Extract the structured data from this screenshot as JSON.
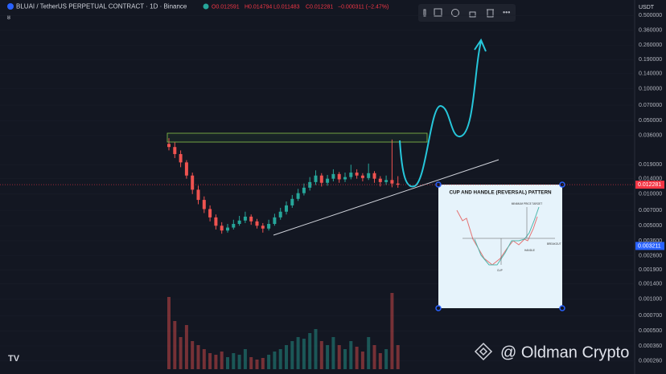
{
  "chart_data": {
    "type": "candlestick",
    "title": "BLUAI / TetherUS PERPETUAL CONTRACT · 1D · Binance",
    "ohlc_legend": [
      "O0.012591",
      "H0.014794",
      "L0.011483",
      "C0.012281",
      "−0.000311 (−2.47%)"
    ],
    "indicator_count": "8",
    "currency": "USDT",
    "log_scale": true,
    "ylim": [
      0.000224,
      0.7
    ],
    "yticks": [
      {
        "value": 0.5,
        "label": "0.500000"
      },
      {
        "value": 0.36,
        "label": "0.360000"
      },
      {
        "value": 0.26,
        "label": "0.260000"
      },
      {
        "value": 0.19,
        "label": "0.190000"
      },
      {
        "value": 0.14,
        "label": "0.140000"
      },
      {
        "value": 0.1,
        "label": "0.100000"
      },
      {
        "value": 0.07,
        "label": "0.070000"
      },
      {
        "value": 0.05,
        "label": "0.050000"
      },
      {
        "value": 0.036,
        "label": "0.036000"
      },
      {
        "value": 0.019,
        "label": "0.019000"
      },
      {
        "value": 0.014,
        "label": "0.014000"
      },
      {
        "value": 0.01,
        "label": "0.010000"
      },
      {
        "value": 0.007,
        "label": "0.007000"
      },
      {
        "value": 0.005,
        "label": "0.005000"
      },
      {
        "value": 0.0036,
        "label": "0.003600"
      },
      {
        "value": 0.0026,
        "label": "0.002600"
      },
      {
        "value": 0.0019,
        "label": "0.001900"
      },
      {
        "value": 0.0014,
        "label": "0.001400"
      },
      {
        "value": 0.001,
        "label": "0.001000"
      },
      {
        "value": 0.0007,
        "label": "0.000700"
      },
      {
        "value": 0.0005,
        "label": "0.000500"
      },
      {
        "value": 0.00036,
        "label": "0.000360"
      },
      {
        "value": 0.00026,
        "label": "0.000260"
      }
    ],
    "up_color": "#26a69a",
    "down_color": "#ef5350",
    "open": [
      0.03,
      0.028,
      0.024,
      0.02,
      0.015,
      0.011,
      0.0088,
      0.0072,
      0.006,
      0.005,
      0.0045,
      0.0048,
      0.0052,
      0.0056,
      0.0061,
      0.0055,
      0.005,
      0.0047,
      0.0052,
      0.006,
      0.0068,
      0.0078,
      0.009,
      0.0102,
      0.0115,
      0.013,
      0.015,
      0.0128,
      0.014,
      0.0155,
      0.0138,
      0.0145,
      0.016,
      0.015,
      0.0142,
      0.0158,
      0.014,
      0.013,
      0.0136,
      0.012591
    ],
    "high": [
      0.034,
      0.031,
      0.026,
      0.021,
      0.016,
      0.012,
      0.0095,
      0.0078,
      0.0064,
      0.0054,
      0.0052,
      0.0057,
      0.0062,
      0.0068,
      0.0064,
      0.0058,
      0.0053,
      0.0057,
      0.0065,
      0.0074,
      0.0085,
      0.0098,
      0.0112,
      0.0126,
      0.0145,
      0.0168,
      0.0158,
      0.0152,
      0.0172,
      0.0162,
      0.016,
      0.019,
      0.0172,
      0.0158,
      0.0195,
      0.0165,
      0.0148,
      0.015,
      0.033,
      0.014794
    ],
    "low": [
      0.026,
      0.022,
      0.018,
      0.014,
      0.01,
      0.008,
      0.0066,
      0.0055,
      0.0046,
      0.0042,
      0.0043,
      0.0046,
      0.005,
      0.0053,
      0.0051,
      0.0047,
      0.0043,
      0.0045,
      0.005,
      0.0057,
      0.0064,
      0.0074,
      0.0086,
      0.0097,
      0.0108,
      0.0122,
      0.0118,
      0.012,
      0.0132,
      0.0128,
      0.013,
      0.0138,
      0.014,
      0.0132,
      0.0136,
      0.0128,
      0.0118,
      0.0122,
      0.0116,
      0.011483
    ],
    "close": [
      0.028,
      0.024,
      0.02,
      0.015,
      0.011,
      0.0088,
      0.0072,
      0.006,
      0.005,
      0.0045,
      0.0048,
      0.0052,
      0.0056,
      0.0061,
      0.0055,
      0.005,
      0.0047,
      0.0052,
      0.006,
      0.0068,
      0.0078,
      0.009,
      0.0102,
      0.0115,
      0.013,
      0.015,
      0.0128,
      0.014,
      0.0155,
      0.0138,
      0.0145,
      0.016,
      0.015,
      0.0142,
      0.0158,
      0.014,
      0.013,
      0.0136,
      0.012591,
      0.012281
    ],
    "volume": [
      90,
      60,
      40,
      55,
      35,
      30,
      25,
      20,
      18,
      22,
      15,
      20,
      18,
      25,
      15,
      12,
      14,
      18,
      22,
      25,
      30,
      35,
      40,
      38,
      45,
      50,
      35,
      30,
      40,
      30,
      25,
      35,
      28,
      22,
      40,
      30,
      20,
      25,
      95,
      30
    ],
    "vlim": [
      0,
      100
    ],
    "price_tags": [
      {
        "value": 0.012281,
        "label": "0.012281",
        "color": "#f23645"
      },
      {
        "value": 0.003211,
        "label": "0.003211",
        "color": "#2962ff"
      }
    ],
    "inset": {
      "title": "CUP AND HANDLE (REVERSAL) PATTERN",
      "labels": [
        "MINIMUM PRICE TARGET",
        "BREAKOUT",
        "HANDLE",
        "CUP"
      ]
    },
    "watermark": "@ Oldman Crypto"
  }
}
